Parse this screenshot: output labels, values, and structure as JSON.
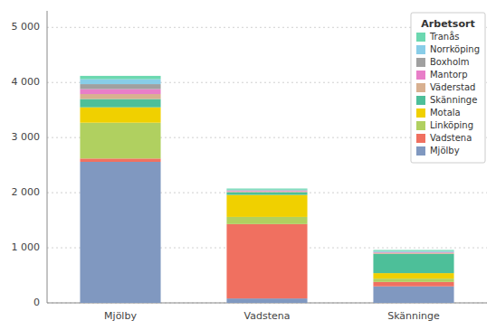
{
  "chart_data": {
    "type": "bar",
    "stacked": true,
    "categories": [
      "Mjölby",
      "Vadstena",
      "Skänninge"
    ],
    "legend_title": "Arbetsort",
    "series": [
      {
        "name": "Mjölby",
        "color": "#8098c0",
        "values": [
          2560,
          80,
          300
        ]
      },
      {
        "name": "Vadstena",
        "color": "#f07060",
        "values": [
          60,
          1350,
          80
        ]
      },
      {
        "name": "Linköping",
        "color": "#b0d060",
        "values": [
          650,
          130,
          60
        ]
      },
      {
        "name": "Motala",
        "color": "#f0d000",
        "values": [
          280,
          400,
          100
        ]
      },
      {
        "name": "Skänninge",
        "color": "#4dbf99",
        "values": [
          150,
          50,
          350
        ]
      },
      {
        "name": "Väderstad",
        "color": "#d8b090",
        "values": [
          90,
          15,
          15
        ]
      },
      {
        "name": "Mantorp",
        "color": "#e87ec8",
        "values": [
          90,
          10,
          10
        ]
      },
      {
        "name": "Boxholm",
        "color": "#a0a0a0",
        "values": [
          90,
          10,
          10
        ]
      },
      {
        "name": "Norrköping",
        "color": "#88cde8",
        "values": [
          90,
          10,
          15
        ]
      },
      {
        "name": "Tranås",
        "color": "#6cd8b0",
        "values": [
          60,
          20,
          20
        ]
      }
    ],
    "ylim": [
      0,
      5300
    ],
    "yticks": [
      0,
      {
        "value": 1000,
        "label": "1 000"
      },
      {
        "value": 2000,
        "label": "2 000"
      },
      {
        "value": 3000,
        "label": "3 000"
      },
      {
        "value": 4000,
        "label": "4 000"
      },
      {
        "value": 5000,
        "label": "5 000"
      }
    ],
    "grid": true,
    "legend": "upper right"
  }
}
